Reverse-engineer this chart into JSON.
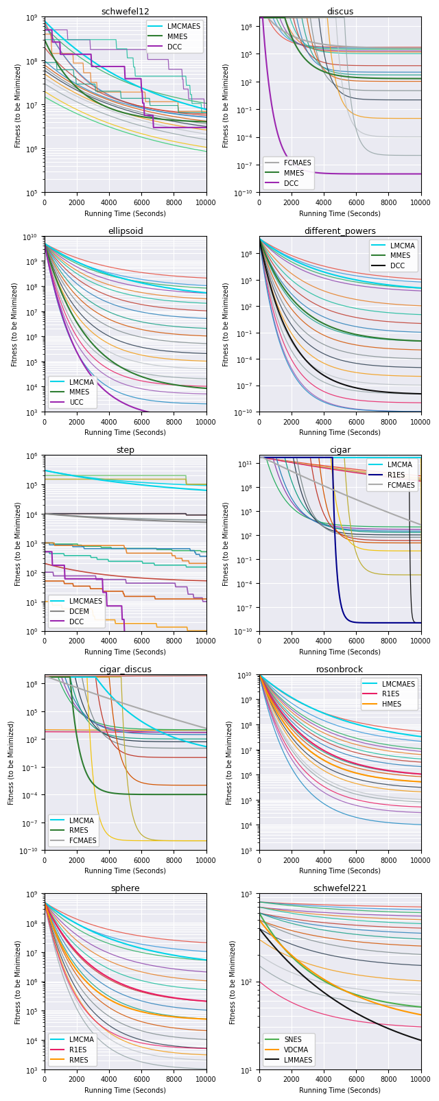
{
  "subplots": [
    {
      "title": "schwefel12",
      "legend": [
        "LMCMAES",
        "MMES",
        "DCC"
      ],
      "legend_colors": [
        "#00d4e8",
        "#2e7d32",
        "#9c27b0"
      ],
      "ylim": [
        100000.0,
        1000000000.0
      ],
      "legend_loc": "upper right"
    },
    {
      "title": "discus",
      "legend": [
        "FCMAES",
        "MMES",
        "DCC"
      ],
      "legend_colors": [
        "#aaaaaa",
        "#2e7d32",
        "#9c27b0"
      ],
      "ylim": [
        1e-10,
        1000000000.0
      ],
      "legend_loc": "lower left"
    },
    {
      "title": "ellipsoid",
      "legend": [
        "LMCMA",
        "MMES",
        "UCC"
      ],
      "legend_colors": [
        "#00d4e8",
        "#2e7d32",
        "#9c27b0"
      ],
      "ylim": [
        1000.0,
        10000000000.0
      ],
      "legend_loc": "lower left"
    },
    {
      "title": "different_powers",
      "legend": [
        "LMCMA",
        "MMES",
        "DCC"
      ],
      "legend_colors": [
        "#00d4e8",
        "#2e7d32",
        "#111111"
      ],
      "ylim": [
        1e-10,
        10000000000.0
      ],
      "legend_loc": "upper right"
    },
    {
      "title": "step",
      "legend": [
        "LMCMAES",
        "DCEM",
        "DCC"
      ],
      "legend_colors": [
        "#00d4e8",
        "#888888",
        "#9c27b0"
      ],
      "ylim": [
        1.0,
        1000000.0
      ],
      "legend_loc": "lower left"
    },
    {
      "title": "cigar",
      "legend": [
        "LMCMA",
        "R1ES",
        "FCMAES"
      ],
      "legend_colors": [
        "#00d4e8",
        "#00008b",
        "#aaaaaa"
      ],
      "ylim": [
        1e-10,
        1000000000000.0
      ],
      "legend_loc": "upper right"
    },
    {
      "title": "cigar_discus",
      "legend": [
        "LMCMA",
        "RMES",
        "FCMAES"
      ],
      "legend_colors": [
        "#00d4e8",
        "#2e7d32",
        "#aaaaaa"
      ],
      "ylim": [
        1e-10,
        1000000000.0
      ],
      "legend_loc": "lower left"
    },
    {
      "title": "rosonbrock",
      "legend": [
        "LMCMAES",
        "R1ES",
        "HMES"
      ],
      "legend_colors": [
        "#00d4e8",
        "#e91e63",
        "#ff9800"
      ],
      "ylim": [
        1000.0,
        10000000000.0
      ],
      "legend_loc": "upper right"
    },
    {
      "title": "sphere",
      "legend": [
        "LMCMA",
        "R1ES",
        "RMES"
      ],
      "legend_colors": [
        "#00d4e8",
        "#e91e63",
        "#ff9800"
      ],
      "ylim": [
        1000.0,
        1000000000.0
      ],
      "legend_loc": "lower left"
    },
    {
      "title": "schwefel221",
      "legend": [
        "SNES",
        "VDCMA",
        "LMMAES"
      ],
      "legend_colors": [
        "#4caf50",
        "#ff9800",
        "#111111"
      ],
      "ylim": [
        10.0,
        1000.0
      ],
      "legend_loc": "lower left"
    }
  ],
  "xlabel": "Running Time (Seconds)",
  "ylabel": "Fitness (to be Minimized)",
  "xlim": [
    0,
    10000
  ],
  "xticks": [
    0,
    2000,
    4000,
    6000,
    8000,
    10000
  ],
  "bg_color": "#eaeaf2",
  "grid_color": "white"
}
